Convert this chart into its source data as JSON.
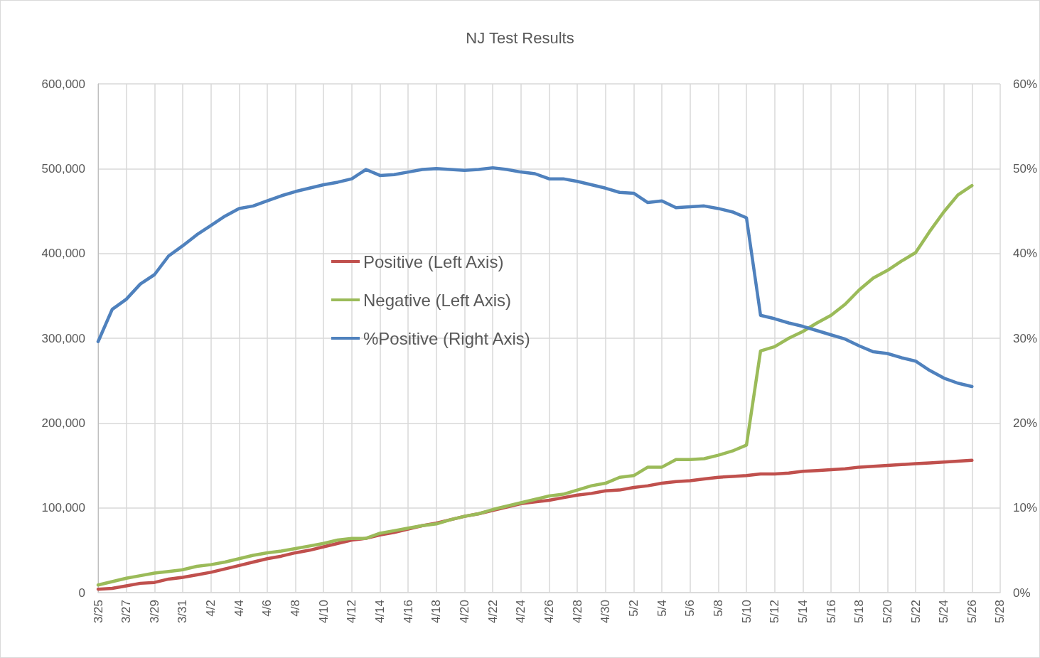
{
  "chart_data": {
    "type": "line",
    "title": "NJ Test Results",
    "categories": [
      "3/25",
      null,
      "3/27",
      null,
      "3/29",
      null,
      "3/31",
      null,
      "4/2",
      null,
      "4/4",
      null,
      "4/6",
      null,
      "4/8",
      null,
      "4/10",
      null,
      "4/12",
      null,
      "4/14",
      null,
      "4/16",
      null,
      "4/18",
      null,
      "4/20",
      null,
      "4/22",
      null,
      "4/24",
      null,
      "4/26",
      null,
      "4/28",
      null,
      "4/30",
      null,
      "5/2",
      null,
      "5/4",
      null,
      "5/6",
      null,
      "5/8",
      null,
      "5/10",
      null,
      "5/12",
      null,
      "5/14",
      null,
      "5/16",
      null,
      "5/18",
      null,
      "5/20",
      null,
      "5/22",
      null,
      "5/24",
      null,
      "5/26",
      null,
      "5/28"
    ],
    "series": [
      {
        "name": "Positive (Left Axis)",
        "color": "#c0504d",
        "values": [
          4000,
          5000,
          8000,
          11000,
          12000,
          16000,
          18000,
          21000,
          24000,
          28000,
          32000,
          36000,
          40000,
          43000,
          47000,
          50000,
          54000,
          58000,
          62000,
          64000,
          68000,
          71000,
          75000,
          79000,
          82000,
          86000,
          90000,
          93000,
          97000,
          101000,
          105000,
          107000,
          109000,
          112000,
          115000,
          117000,
          120000,
          121000,
          124000,
          126000,
          129000,
          131000,
          132000,
          134000,
          136000,
          137000,
          138000,
          140000,
          140000,
          141000,
          143000,
          144000,
          145000,
          146000,
          148000,
          149000,
          150000,
          151000,
          152000,
          153000,
          154000,
          155000,
          156000,
          null,
          null
        ]
      },
      {
        "name": "Negative (Left Axis)",
        "color": "#9bbb59",
        "values": [
          9000,
          13000,
          17000,
          20000,
          23000,
          25000,
          27000,
          31000,
          33000,
          36000,
          40000,
          44000,
          47000,
          49000,
          52000,
          55000,
          58000,
          62000,
          64000,
          64000,
          70000,
          73000,
          76000,
          79000,
          81000,
          86000,
          90000,
          93000,
          98000,
          102000,
          106000,
          110000,
          114000,
          116000,
          121000,
          126000,
          129000,
          136000,
          138000,
          148000,
          148000,
          157000,
          157000,
          158000,
          162000,
          167000,
          174000,
          285000,
          290000,
          300000,
          308000,
          318000,
          327000,
          340000,
          357000,
          371000,
          380000,
          391000,
          401000,
          426000,
          449000,
          469000,
          480000,
          null,
          null
        ]
      },
      {
        "name": "%Positive (Right Axis)",
        "color": "#4f81bd",
        "axis": "y2",
        "values": [
          29.6,
          33.4,
          34.6,
          36.4,
          37.5,
          39.7,
          40.9,
          42.2,
          43.3,
          44.4,
          45.3,
          45.6,
          46.2,
          46.8,
          47.3,
          47.7,
          48.1,
          48.4,
          48.8,
          49.9,
          49.2,
          49.3,
          49.6,
          49.9,
          50.0,
          49.9,
          49.8,
          49.9,
          50.1,
          49.9,
          49.6,
          49.4,
          48.8,
          48.8,
          48.5,
          48.1,
          47.7,
          47.2,
          47.1,
          46.0,
          46.2,
          45.4,
          45.5,
          45.6,
          45.3,
          44.9,
          44.2,
          32.7,
          32.3,
          31.8,
          31.4,
          30.9,
          30.4,
          29.9,
          29.1,
          28.4,
          28.2,
          27.7,
          27.3,
          26.2,
          25.3,
          24.7,
          24.3,
          null,
          null
        ]
      }
    ],
    "ylim": [
      0,
      600000
    ],
    "yticks": [
      {
        "value": 0,
        "label": "0"
      },
      {
        "value": 100000,
        "label": "100,000"
      },
      {
        "value": 200000,
        "label": "200,000"
      },
      {
        "value": 300000,
        "label": "300,000"
      },
      {
        "value": 400000,
        "label": "400,000"
      },
      {
        "value": 500000,
        "label": "500,000"
      },
      {
        "value": 600000,
        "label": "600,000"
      }
    ],
    "y2lim": [
      0,
      60
    ],
    "y2ticks": [
      {
        "value": 0,
        "label": "0%"
      },
      {
        "value": 10,
        "label": "10%"
      },
      {
        "value": 20,
        "label": "20%"
      },
      {
        "value": 30,
        "label": "30%"
      },
      {
        "value": 40,
        "label": "40%"
      },
      {
        "value": 50,
        "label": "50%"
      },
      {
        "value": 60,
        "label": "60%"
      }
    ],
    "grid": true,
    "legend": "center",
    "marker": "none",
    "line_style": "solid"
  }
}
